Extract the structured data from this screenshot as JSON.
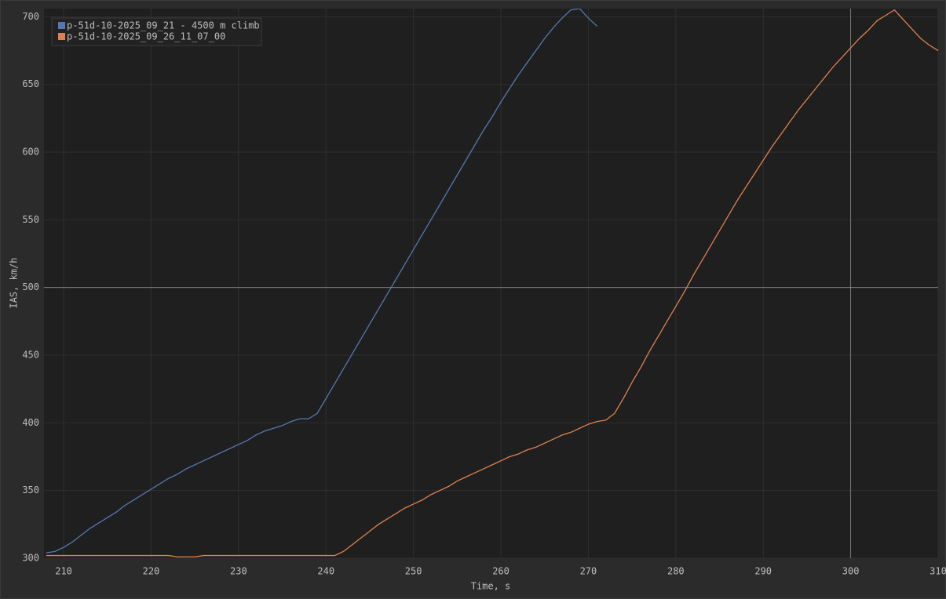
{
  "chart_data": {
    "type": "line",
    "x_label": "Time, s",
    "y_label": "IAS, km/h",
    "x": [
      208,
      209,
      210,
      211,
      212,
      213,
      214,
      215,
      216,
      217,
      218,
      219,
      220,
      221,
      222,
      223,
      224,
      225,
      226,
      227,
      228,
      229,
      230,
      231,
      232,
      233,
      234,
      235,
      236,
      237,
      238,
      239,
      240,
      241,
      242,
      243,
      244,
      245,
      246,
      247,
      248,
      249,
      250,
      251,
      252,
      253,
      254,
      255,
      256,
      257,
      258,
      259,
      260,
      261,
      262,
      263,
      264,
      265,
      266,
      267,
      268,
      269,
      270,
      271,
      272,
      273,
      274,
      275,
      276,
      277,
      278,
      279,
      280,
      281,
      282,
      283,
      284,
      285,
      286,
      287,
      288,
      289,
      290,
      291,
      292,
      293,
      294,
      295,
      296,
      297,
      298,
      299,
      300,
      301,
      302,
      303,
      304,
      305,
      306,
      307,
      308,
      309,
      310
    ],
    "series": [
      {
        "name": "p-51d-10-2025_09_21 - 4500 m climb",
        "color": "#5577b3",
        "values": [
          304,
          305,
          308,
          312,
          317,
          322,
          326,
          330,
          334,
          339,
          343,
          347,
          351,
          355,
          359,
          362,
          366,
          369,
          372,
          375,
          378,
          381,
          384,
          387,
          391,
          394,
          396,
          398,
          401,
          403,
          403,
          407,
          418,
          429,
          440,
          451,
          462,
          473,
          484,
          495,
          506,
          517,
          528,
          539,
          550,
          561,
          572,
          583,
          594,
          605,
          616,
          626,
          637,
          647,
          657,
          666,
          675,
          684,
          692,
          699,
          705,
          706,
          699,
          693,
          null,
          null,
          null,
          null,
          null,
          null,
          null,
          null,
          null,
          null,
          null,
          null,
          null,
          null,
          null,
          null,
          null,
          null,
          null,
          null,
          null,
          null,
          null,
          null,
          null,
          null,
          null,
          null,
          null,
          null,
          null,
          null,
          null,
          null,
          null,
          null,
          null,
          null,
          null
        ]
      },
      {
        "name": "p-51d-10-2025_09_26_11_07_00",
        "color": "#e0804f",
        "values": [
          302,
          302,
          302,
          302,
          302,
          302,
          302,
          302,
          302,
          302,
          302,
          302,
          302,
          302,
          302,
          301,
          301,
          301,
          302,
          302,
          302,
          302,
          302,
          302,
          302,
          302,
          302,
          302,
          302,
          302,
          302,
          302,
          302,
          302,
          305,
          310,
          315,
          320,
          325,
          329,
          333,
          337,
          340,
          343,
          347,
          350,
          353,
          357,
          360,
          363,
          366,
          369,
          372,
          375,
          377,
          380,
          382,
          385,
          388,
          391,
          393,
          396,
          399,
          401,
          402,
          407,
          418,
          430,
          441,
          453,
          464,
          475,
          486,
          497,
          509,
          520,
          531,
          542,
          553,
          564,
          574,
          584,
          594,
          604,
          613,
          622,
          631,
          639,
          647,
          655,
          663,
          670,
          677,
          684,
          690,
          697,
          701,
          705,
          698,
          691,
          684,
          679,
          675
        ]
      }
    ],
    "xlim": [
      207.75,
      310
    ],
    "ylim": [
      300,
      706
    ],
    "xticks": [
      210,
      220,
      230,
      240,
      250,
      260,
      270,
      280,
      290,
      300,
      310
    ],
    "yticks": [
      300,
      350,
      400,
      450,
      500,
      550,
      600,
      650,
      700
    ],
    "grid": true,
    "legend": "top-left",
    "crosshair": {
      "x": 300,
      "y": 500
    }
  }
}
